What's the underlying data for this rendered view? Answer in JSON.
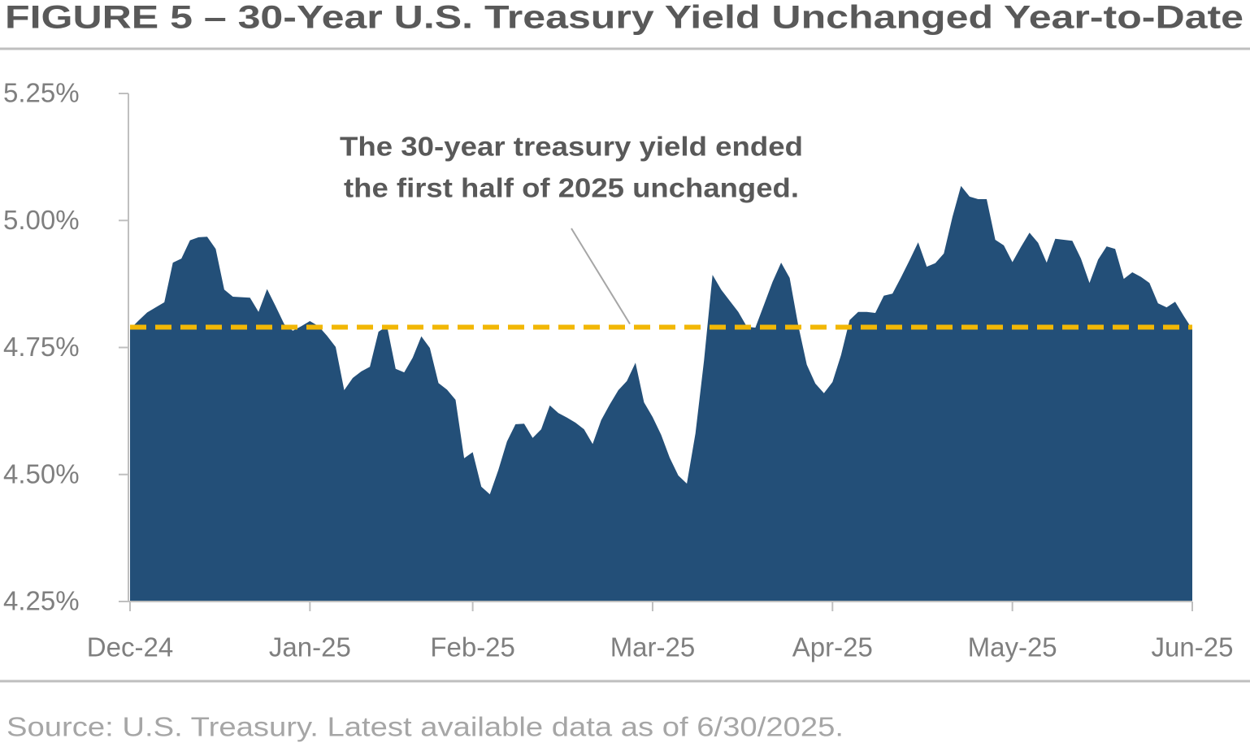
{
  "chart_data": {
    "type": "area",
    "title": "FIGURE 5 – 30-Year U.S. Treasury Yield Unchanged Year-to-Date",
    "annotation": [
      "The 30-year treasury yield ended",
      "the first half of 2025 unchanged."
    ],
    "source": "Source: U.S. Treasury. Latest available data as of 6/30/2025.",
    "color": "#234f78",
    "reference_line": {
      "value": 4.79,
      "color": "#f2b705"
    },
    "categories": [
      "Dec-24",
      null,
      null,
      null,
      null,
      null,
      null,
      null,
      null,
      null,
      null,
      null,
      null,
      null,
      null,
      null,
      null,
      null,
      null,
      null,
      null,
      "Jan-25",
      null,
      null,
      null,
      null,
      null,
      null,
      null,
      null,
      null,
      null,
      null,
      null,
      null,
      null,
      null,
      null,
      null,
      null,
      "Feb-25",
      null,
      null,
      null,
      null,
      null,
      null,
      null,
      null,
      null,
      null,
      null,
      null,
      null,
      null,
      null,
      null,
      null,
      null,
      null,
      null,
      "Mar-25",
      null,
      null,
      null,
      null,
      null,
      null,
      null,
      null,
      null,
      null,
      null,
      null,
      null,
      null,
      null,
      null,
      null,
      null,
      null,
      null,
      "Apr-25",
      null,
      null,
      null,
      null,
      null,
      null,
      null,
      null,
      null,
      null,
      null,
      null,
      null,
      null,
      null,
      null,
      null,
      null,
      null,
      null,
      "May-25",
      null,
      null,
      null,
      null,
      null,
      null,
      null,
      null,
      null,
      null,
      null,
      null,
      null,
      null,
      null,
      null,
      null,
      null,
      null,
      null,
      "Jun-25"
    ],
    "values": [
      4.786,
      4.803,
      4.819,
      4.829,
      4.839,
      4.917,
      4.925,
      4.961,
      4.967,
      4.968,
      4.944,
      4.864,
      4.85,
      4.849,
      4.848,
      4.82,
      4.865,
      4.831,
      4.796,
      4.783,
      4.792,
      4.802,
      4.792,
      4.773,
      4.751,
      4.666,
      4.69,
      4.703,
      4.712,
      4.781,
      4.792,
      4.708,
      4.701,
      4.73,
      4.772,
      4.749,
      4.68,
      4.667,
      4.647,
      4.532,
      4.544,
      4.476,
      4.461,
      4.509,
      4.565,
      4.599,
      4.6,
      4.572,
      4.589,
      4.636,
      4.621,
      4.612,
      4.602,
      4.589,
      4.56,
      4.607,
      4.638,
      4.666,
      4.684,
      4.72,
      4.642,
      4.613,
      4.578,
      4.533,
      4.498,
      4.482,
      4.581,
      4.724,
      4.893,
      4.864,
      4.842,
      4.82,
      4.791,
      4.789,
      4.834,
      4.879,
      4.917,
      4.887,
      4.794,
      4.716,
      4.679,
      4.66,
      4.682,
      4.735,
      4.804,
      4.82,
      4.82,
      4.818,
      4.852,
      4.856,
      4.888,
      4.922,
      4.957,
      4.909,
      4.916,
      4.935,
      5.007,
      5.068,
      5.047,
      5.042,
      5.042,
      4.962,
      4.951,
      4.918,
      4.948,
      4.976,
      4.956,
      4.917,
      4.964,
      4.962,
      4.96,
      4.925,
      4.877,
      4.923,
      4.949,
      4.944,
      4.885,
      4.898,
      4.889,
      4.877,
      4.837,
      4.829,
      4.84,
      4.812,
      4.786
    ],
    "ylim": [
      4.25,
      5.25
    ],
    "yticks": [
      {
        "value": 4.25,
        "label": "4.25%"
      },
      {
        "value": 4.5,
        "label": "4.50%"
      },
      {
        "value": 4.75,
        "label": "4.75%"
      },
      {
        "value": 5.0,
        "label": "5.00%"
      },
      {
        "value": 5.25,
        "label": "5.25%"
      }
    ],
    "grid": false
  }
}
